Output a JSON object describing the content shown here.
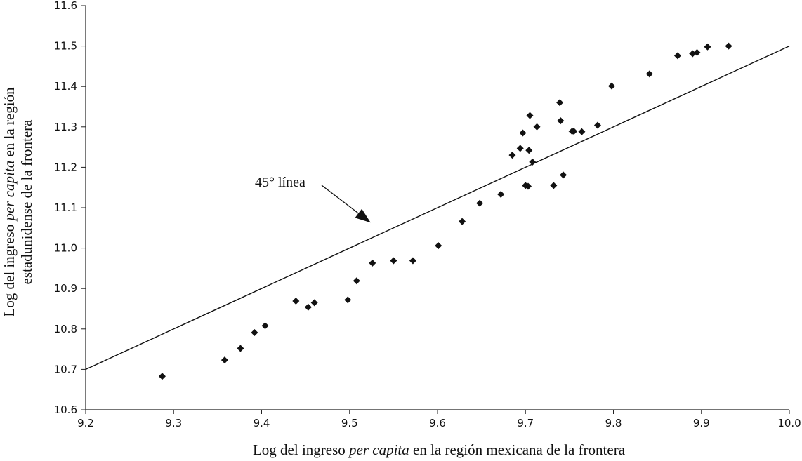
{
  "chart_data": {
    "type": "scatter",
    "xlabel_parts": [
      {
        "text": "Log del ingreso ",
        "italic": false
      },
      {
        "text": "per capita",
        "italic": true
      },
      {
        "text": " en la región mexicana de la frontera",
        "italic": false
      }
    ],
    "ylabel_line1_parts": [
      {
        "text": "Log del ingreso ",
        "italic": false
      },
      {
        "text": "per capita",
        "italic": true
      },
      {
        "text": " en la región",
        "italic": false
      }
    ],
    "ylabel_line2": "estadunidense de la frontera",
    "xlim": [
      9.2,
      10.0
    ],
    "ylim": [
      10.6,
      11.6
    ],
    "x_ticks": [
      "9.2",
      "9.3",
      "9.4",
      "9.5",
      "9.6",
      "9.7",
      "9.8",
      "9.9",
      "10.0"
    ],
    "y_ticks": [
      "10.6",
      "10.7",
      "10.8",
      "10.9",
      "11.0",
      "11.1",
      "11.2",
      "11.3",
      "11.4",
      "11.5",
      "11.6"
    ],
    "grid": false,
    "reference_line": {
      "from": [
        9.2,
        10.7
      ],
      "to": [
        10.0,
        11.5
      ]
    },
    "annotation": {
      "text": "45° línea",
      "arrow_to": [
        9.524,
        11.063
      ]
    },
    "points": [
      [
        9.287,
        10.683
      ],
      [
        9.358,
        10.723
      ],
      [
        9.376,
        10.752
      ],
      [
        9.392,
        10.791
      ],
      [
        9.404,
        10.808
      ],
      [
        9.439,
        10.869
      ],
      [
        9.453,
        10.854
      ],
      [
        9.46,
        10.865
      ],
      [
        9.498,
        10.872
      ],
      [
        9.508,
        10.919
      ],
      [
        9.526,
        10.963
      ],
      [
        9.55,
        10.969
      ],
      [
        9.572,
        10.969
      ],
      [
        9.601,
        11.006
      ],
      [
        9.628,
        11.066
      ],
      [
        9.648,
        11.111
      ],
      [
        9.672,
        11.133
      ],
      [
        9.685,
        11.23
      ],
      [
        9.694,
        11.247
      ],
      [
        9.697,
        11.285
      ],
      [
        9.7,
        11.155
      ],
      [
        9.703,
        11.153
      ],
      [
        9.704,
        11.242
      ],
      [
        9.705,
        11.328
      ],
      [
        9.708,
        11.213
      ],
      [
        9.713,
        11.3
      ],
      [
        9.732,
        11.155
      ],
      [
        9.739,
        11.36
      ],
      [
        9.74,
        11.315
      ],
      [
        9.743,
        11.181
      ],
      [
        9.753,
        11.289
      ],
      [
        9.755,
        11.289
      ],
      [
        9.764,
        11.288
      ],
      [
        9.782,
        11.304
      ],
      [
        9.798,
        11.401
      ],
      [
        9.841,
        11.431
      ],
      [
        9.873,
        11.476
      ],
      [
        9.89,
        11.481
      ],
      [
        9.895,
        11.484
      ],
      [
        9.907,
        11.498
      ],
      [
        9.931,
        11.5
      ]
    ]
  }
}
